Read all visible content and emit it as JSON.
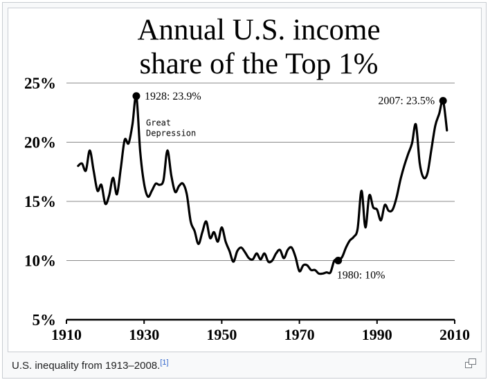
{
  "caption": {
    "text": "U.S. inequality from 1913–2008.",
    "ref": "[1]",
    "enlarge_icon": "enlarge-icon"
  },
  "chart_data": {
    "type": "line",
    "title_lines": [
      "Annual U.S. income",
      "share of the Top 1%"
    ],
    "xlabel": "",
    "ylabel": "",
    "xlim": [
      1910,
      2010
    ],
    "ylim": [
      5,
      25
    ],
    "xticks": [
      1910,
      1930,
      1950,
      1970,
      1990,
      2010
    ],
    "yticks": [
      5,
      10,
      15,
      20,
      25
    ],
    "ytick_labels": [
      "5%",
      "10%",
      "15%",
      "20%",
      "25%"
    ],
    "grid": "horizontal",
    "line_color": "#000000",
    "series": [
      {
        "x": [
          1913,
          1914,
          1915,
          1916,
          1917,
          1918,
          1919,
          1920,
          1921,
          1922,
          1923,
          1924,
          1925,
          1926,
          1927,
          1928,
          1929,
          1930,
          1931,
          1932,
          1933,
          1934,
          1935,
          1936,
          1937,
          1938,
          1939,
          1940,
          1941,
          1942,
          1943,
          1944,
          1945,
          1946,
          1947,
          1948,
          1949,
          1950,
          1951,
          1952,
          1953,
          1954,
          1955,
          1956,
          1957,
          1958,
          1959,
          1960,
          1961,
          1962,
          1963,
          1964,
          1965,
          1966,
          1967,
          1968,
          1969,
          1970,
          1971,
          1972,
          1973,
          1974,
          1975,
          1976,
          1977,
          1978,
          1979,
          1980,
          1981,
          1982,
          1983,
          1984,
          1985,
          1986,
          1987,
          1988,
          1989,
          1990,
          1991,
          1992,
          1993,
          1994,
          1995,
          1996,
          1997,
          1998,
          1999,
          2000,
          2001,
          2002,
          2003,
          2004,
          2005,
          2006,
          2007,
          2008
        ],
        "y": [
          18.0,
          18.2,
          17.6,
          19.3,
          17.6,
          15.9,
          16.4,
          14.8,
          15.5,
          17.0,
          15.6,
          17.8,
          20.2,
          19.9,
          21.5,
          23.9,
          19.2,
          16.5,
          15.4,
          15.9,
          16.5,
          16.4,
          16.8,
          19.3,
          17.2,
          15.8,
          16.3,
          16.5,
          15.6,
          13.3,
          12.5,
          11.4,
          12.4,
          13.3,
          11.9,
          12.4,
          11.6,
          12.8,
          11.6,
          10.8,
          9.9,
          10.8,
          11.1,
          10.7,
          10.2,
          10.1,
          10.6,
          10.1,
          10.6,
          9.9,
          10.0,
          10.6,
          10.9,
          10.2,
          10.9,
          11.1,
          10.3,
          9.1,
          9.6,
          9.6,
          9.2,
          9.2,
          8.9,
          8.9,
          9.0,
          9.0,
          10.0,
          10.0,
          10.3,
          11.1,
          11.7,
          12.0,
          12.7,
          15.9,
          12.8,
          15.5,
          14.5,
          14.3,
          13.4,
          14.7,
          14.2,
          14.3,
          15.3,
          16.8,
          18.0,
          19.0,
          19.9,
          21.5,
          18.2,
          17.0,
          17.4,
          19.4,
          21.4,
          22.4,
          23.5,
          21.0
        ]
      }
    ],
    "annotations": [
      {
        "x": 1928,
        "y": 23.9,
        "text": "1928: 23.9%"
      },
      {
        "x": 1930.5,
        "y": 21.4,
        "text_lines": [
          "Great",
          "Depression"
        ]
      },
      {
        "x": 2007,
        "y": 23.5,
        "text": "2007: 23.5%"
      },
      {
        "x": 1980,
        "y": 10.0,
        "text": "1980: 10%"
      }
    ]
  }
}
